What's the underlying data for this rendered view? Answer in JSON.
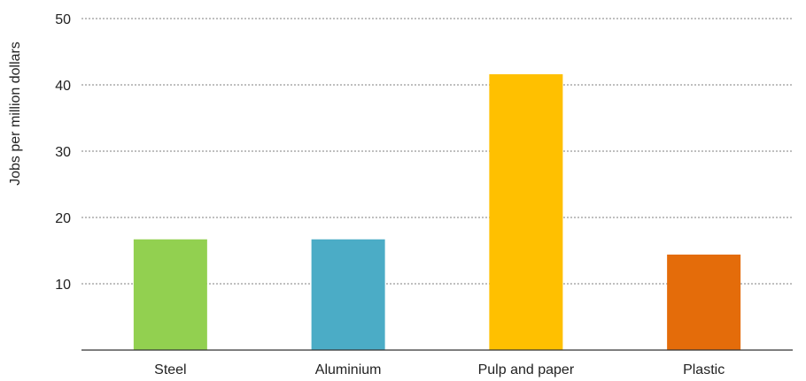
{
  "chart_data": {
    "type": "bar",
    "title": "",
    "xlabel": "",
    "ylabel": "Jobs per million dollars",
    "categories": [
      "Steel",
      "Aluminium",
      "Pulp and paper",
      "Plastic"
    ],
    "values": [
      16.7,
      16.7,
      41.6,
      14.4
    ],
    "colors": [
      "#92d050",
      "#4bacc6",
      "#ffc000",
      "#e46c0a"
    ],
    "ylim": [
      0,
      50
    ],
    "yticks": [
      10,
      20,
      30,
      40,
      50
    ],
    "ytick_labels": [
      "10",
      "20",
      "30",
      "40",
      "50"
    ],
    "grid": true,
    "grid_color": "#999999",
    "axis_color": "#333333",
    "legend": "none"
  }
}
